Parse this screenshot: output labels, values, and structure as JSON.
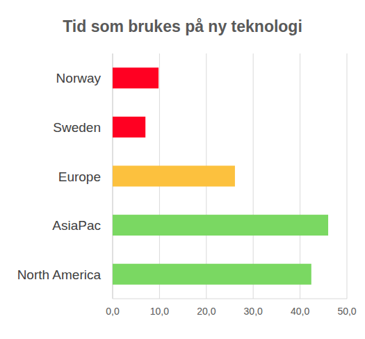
{
  "chart_data": {
    "type": "bar",
    "orientation": "horizontal",
    "title": "Tid som brukes på ny teknologi",
    "categories": [
      "Norway",
      "Sweden",
      "Europe",
      "AsiaPac",
      "North America"
    ],
    "values": [
      9.8,
      7.0,
      26.1,
      46.0,
      42.4
    ],
    "colors": [
      "#ff0022",
      "#ff0022",
      "#fcc13e",
      "#7ad862",
      "#7ad862"
    ],
    "xlim": [
      0,
      50
    ],
    "xticks": [
      {
        "value": 0,
        "label": "0,0"
      },
      {
        "value": 10,
        "label": "10,0"
      },
      {
        "value": 20,
        "label": "20,0"
      },
      {
        "value": 30,
        "label": "30,0"
      },
      {
        "value": 40,
        "label": "40,0"
      },
      {
        "value": 50,
        "label": "50,0"
      }
    ],
    "grid": true
  }
}
